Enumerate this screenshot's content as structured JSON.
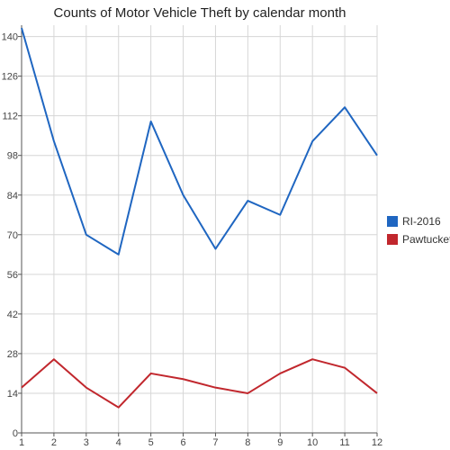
{
  "chart_data": {
    "type": "line",
    "title": "Counts of Motor Vehicle Theft by calendar month",
    "xlabel": "",
    "ylabel": "",
    "x": [
      1,
      2,
      3,
      4,
      5,
      6,
      7,
      8,
      9,
      10,
      11,
      12
    ],
    "ylim": [
      0,
      144
    ],
    "yticks": [
      0,
      14,
      28,
      42,
      56,
      70,
      84,
      98,
      112,
      126,
      140
    ],
    "grid": true,
    "legend_position": "right",
    "series": [
      {
        "name": "RI-2016",
        "color": "#1f66c1",
        "values": [
          143,
          103,
          70,
          63,
          110,
          84,
          65,
          82,
          77,
          103,
          115,
          98
        ]
      },
      {
        "name": "Pawtucket",
        "color": "#c1272d",
        "values": [
          16,
          26,
          16,
          9,
          21,
          19,
          16,
          14,
          21,
          26,
          23,
          14
        ]
      }
    ]
  }
}
